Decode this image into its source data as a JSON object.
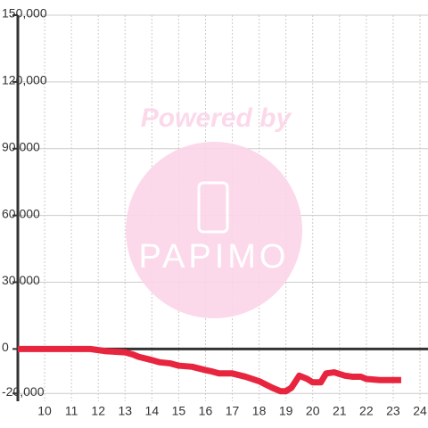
{
  "chart_data": {
    "type": "line",
    "watermark": {
      "line1": "Powered by",
      "line2": "PAPIMO"
    },
    "x": [
      9,
      11.7,
      12,
      12.3,
      13,
      13.3,
      13.5,
      14,
      14.3,
      14.7,
      15,
      15.5,
      16,
      16.2,
      16.5,
      17,
      17.5,
      18,
      18.5,
      18.8,
      19,
      19.2,
      19.5,
      19.8,
      20,
      20.3,
      20.5,
      20.8,
      21.2,
      21.5,
      21.8,
      22,
      22.5,
      23.3
    ],
    "series": [
      {
        "color": "#e8253f",
        "values": [
          0,
          0,
          -500,
          -1000,
          -1500,
          -2500,
          -3500,
          -5000,
          -6000,
          -6500,
          -7500,
          -8000,
          -9500,
          -10000,
          -11000,
          -11000,
          -12500,
          -14500,
          -17500,
          -19000,
          -19000,
          -17500,
          -12000,
          -13500,
          -15000,
          -15000,
          -11000,
          -10500,
          -12000,
          -12500,
          -12500,
          -13500,
          -14000,
          -14000
        ]
      }
    ],
    "xlim": [
      9,
      24.3
    ],
    "xticks": [
      10,
      11,
      12,
      13,
      14,
      15,
      16,
      17,
      18,
      19,
      20,
      21,
      22,
      23,
      24
    ],
    "ylim": [
      -23500,
      150000
    ],
    "yticks": [
      {
        "value": -20000,
        "label": "-20,000"
      },
      0,
      {
        "value": 30000,
        "label": "30,000"
      },
      {
        "value": 60000,
        "label": "60,000"
      },
      {
        "value": 90000,
        "label": "90,000"
      },
      {
        "value": 120000,
        "label": "120,000"
      },
      {
        "value": 150000,
        "label": "150,000"
      }
    ],
    "grid": true
  }
}
